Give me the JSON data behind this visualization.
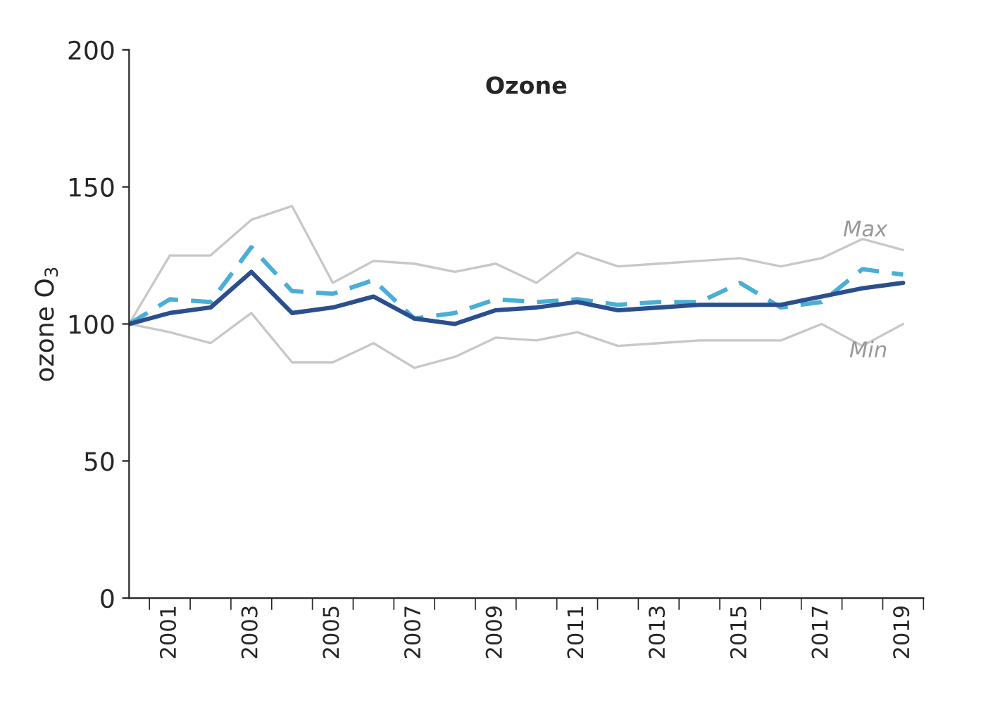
{
  "chart_data": {
    "type": "line",
    "title": "Ozone",
    "ylabel": "ozone O$_{3}$",
    "categories": [
      null,
      "2001",
      null,
      "2003",
      null,
      "2005",
      null,
      "2007",
      null,
      "2009",
      null,
      "2011",
      null,
      "2013",
      null,
      "2015",
      null,
      "2017",
      null,
      "2019"
    ],
    "series": [
      {
        "name": "Max",
        "color": "#c8c8c8",
        "line_style": "solid",
        "values": [
          100,
          125,
          125,
          138,
          143,
          115,
          123,
          122,
          119,
          122,
          115,
          126,
          121,
          122,
          123,
          124,
          121,
          124,
          131,
          127
        ]
      },
      {
        "name": "Min",
        "color": "#c8c8c8",
        "line_style": "solid",
        "values": [
          100,
          97,
          93,
          104,
          86,
          86,
          93,
          84,
          88,
          95,
          94,
          97,
          92,
          93,
          94,
          94,
          94,
          100,
          92,
          100
        ]
      },
      {
        "color": "#4aaed6",
        "line_style": "dashed",
        "values": [
          100,
          109,
          108,
          128,
          112,
          111,
          116,
          102,
          104,
          109,
          108,
          109,
          107,
          108,
          108,
          115,
          106,
          108,
          120,
          118
        ]
      },
      {
        "color": "#2b4f8c",
        "line_style": "solid",
        "values": [
          100,
          104,
          106,
          119,
          104,
          106,
          110,
          102,
          100,
          105,
          106,
          108,
          105,
          106,
          107,
          107,
          107,
          110,
          113,
          115
        ]
      }
    ],
    "ylim": [
      0,
      200
    ],
    "yticks": [
      0,
      50,
      100,
      150,
      200
    ],
    "grid": false,
    "legend": false,
    "marker": "none"
  }
}
